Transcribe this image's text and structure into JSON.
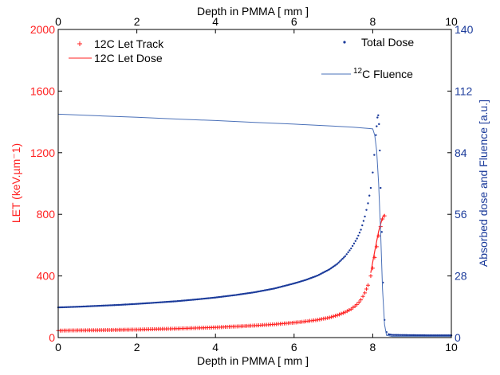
{
  "chart_data": {
    "type": "line",
    "xlabel_bottom": "Depth in PMMA [ mm ]",
    "xlabel_top": "Depth in PMMA [ mm ]",
    "ylabel_left": "LET (keV.µm⁻1)",
    "ylabel_right": "Absorbed dose and Fluence [a.u.]",
    "xlim": [
      0,
      10
    ],
    "xticks": [
      "0",
      "2",
      "4",
      "6",
      "8",
      "10"
    ],
    "ylim_left": [
      0,
      2000
    ],
    "yticks_left": [
      "0",
      "400",
      "800",
      "1200",
      "1600",
      "2000"
    ],
    "ylim_right": [
      0,
      140
    ],
    "yticks_right": [
      "0",
      "28",
      "56",
      "84",
      "112",
      "140"
    ],
    "grid": false,
    "legend_placement": "top",
    "colors": {
      "let": "#ff2020",
      "dose": "#1a3a9a",
      "fluence": "#4a70b8",
      "axis": "#000000"
    },
    "series": [
      {
        "name": "12C Let Track",
        "axis": "left",
        "marker": "plus",
        "x": [
          0.0,
          0.5,
          1.0,
          1.5,
          2.0,
          2.5,
          3.0,
          3.5,
          4.0,
          4.5,
          5.0,
          5.5,
          6.0,
          6.3,
          6.6,
          6.9,
          7.1,
          7.3,
          7.45,
          7.6,
          7.7,
          7.8,
          7.88,
          7.95,
          8.0,
          8.05,
          8.1,
          8.15,
          8.2,
          8.25,
          8.3
        ],
        "values": [
          45,
          47,
          48,
          50,
          52,
          55,
          58,
          62,
          66,
          72,
          78,
          86,
          97,
          105,
          115,
          130,
          145,
          165,
          185,
          215,
          245,
          290,
          340,
          400,
          450,
          520,
          590,
          660,
          720,
          770,
          790
        ]
      },
      {
        "name": "12C Let Dose",
        "axis": "left",
        "marker": "line",
        "x": [
          7.95,
          8.05,
          8.15,
          8.25,
          8.3
        ],
        "values": [
          420,
          560,
          690,
          780,
          800
        ]
      },
      {
        "name": "Total Dose",
        "axis": "right",
        "marker": "dot",
        "x": [
          0.0,
          0.5,
          1.0,
          1.5,
          2.0,
          2.5,
          3.0,
          3.5,
          4.0,
          4.5,
          5.0,
          5.5,
          6.0,
          6.3,
          6.6,
          6.9,
          7.1,
          7.3,
          7.45,
          7.6,
          7.7,
          7.8,
          7.88,
          7.95,
          8.0,
          8.04,
          8.08,
          8.1,
          8.12,
          8.14,
          8.16,
          8.18,
          8.2,
          8.23,
          8.26,
          8.3,
          8.35,
          8.4,
          8.5,
          9.0,
          9.5,
          10.0
        ],
        "values": [
          13.7,
          14.0,
          14.4,
          14.8,
          15.3,
          15.9,
          16.5,
          17.3,
          18.2,
          19.3,
          20.6,
          22.3,
          24.6,
          26.2,
          28.2,
          31.0,
          33.5,
          37.0,
          40.5,
          45.0,
          49.0,
          55.0,
          61.0,
          68.0,
          75.0,
          83.0,
          92.0,
          96.0,
          100.0,
          101.0,
          97.0,
          85.0,
          68.0,
          48.0,
          25.0,
          8.0,
          2.5,
          1.5,
          1.2,
          1.1,
          1.0,
          1.0
        ]
      },
      {
        "name": "12C Fluence",
        "axis": "right",
        "marker": "line",
        "x": [
          0.0,
          1.0,
          2.0,
          3.0,
          4.0,
          5.0,
          6.0,
          7.0,
          7.5,
          7.9,
          8.0,
          8.05,
          8.1,
          8.15,
          8.2,
          8.25,
          8.3,
          8.35,
          8.5,
          9.0,
          10.0
        ],
        "values": [
          101.5,
          100.8,
          100.1,
          99.3,
          98.6,
          97.8,
          97.0,
          96.1,
          95.6,
          95.0,
          94.8,
          92.0,
          85.0,
          70.0,
          48.0,
          22.0,
          6.0,
          1.0,
          0.5,
          0.5,
          0.5
        ]
      }
    ],
    "legend_left": [
      {
        "label": "12C Let Track",
        "marker": "plus"
      },
      {
        "label": "12C Let Dose",
        "marker": "line"
      }
    ],
    "legend_right": [
      {
        "label": "Total Dose",
        "marker": "dot"
      },
      {
        "label_sup": "12",
        "label_rest": "C Fluence",
        "marker": "line"
      }
    ]
  }
}
